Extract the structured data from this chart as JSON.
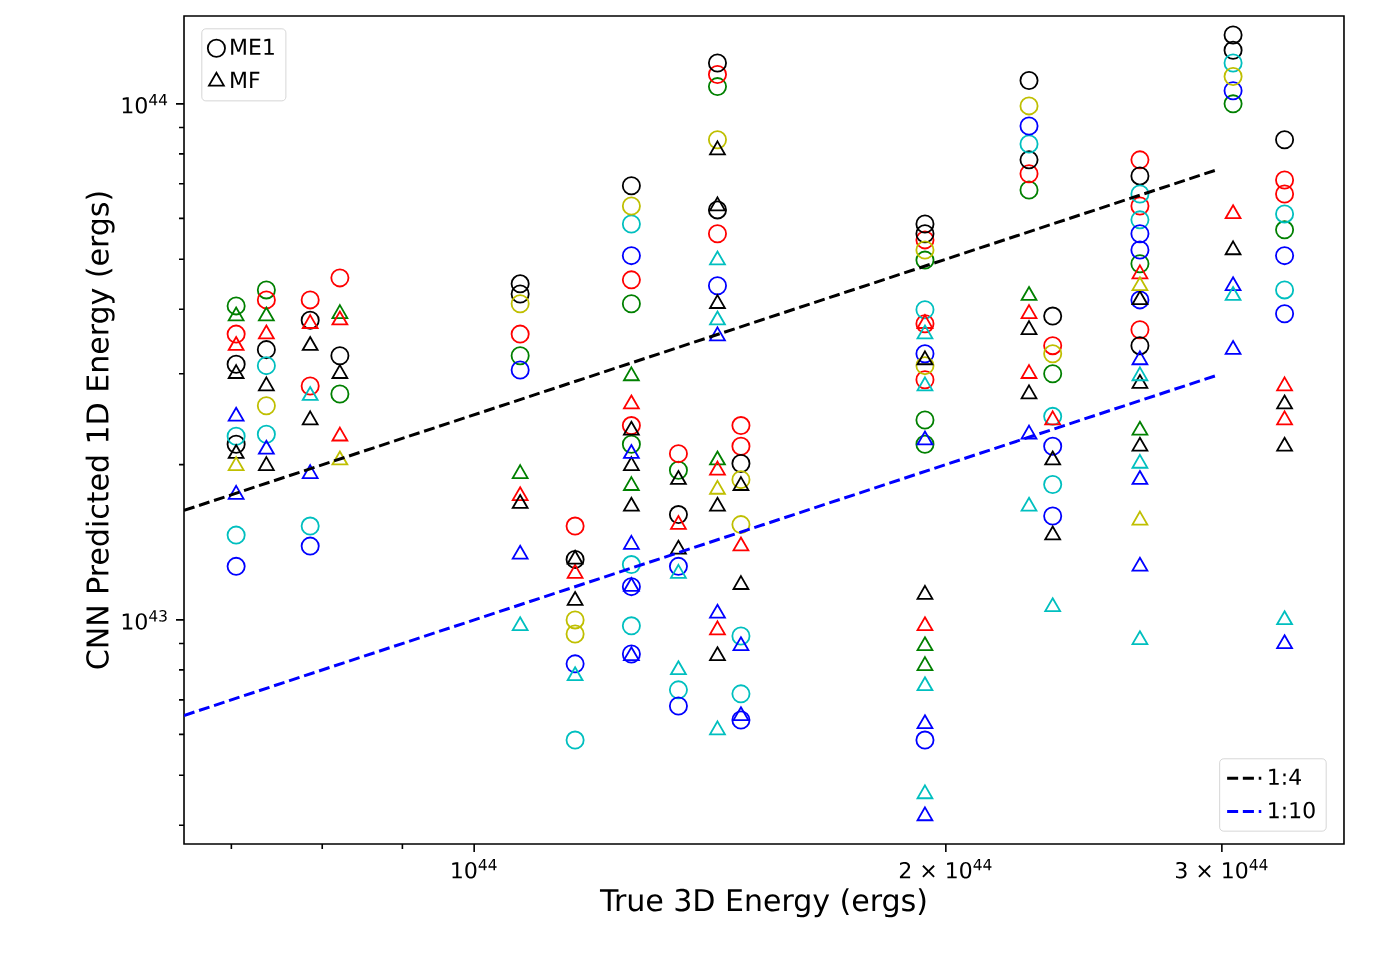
{
  "chart_data": {
    "type": "scatter",
    "xlabel": "True 3D Energy (ergs)",
    "legend": "top left",
    "ylabel": "CNN Predicted 1D Energy (ergs)",
    "log": "xy",
    "xlim": [
      6.53e+43,
      3.59e+44
    ],
    "ylim": [
      3.68e+42,
      1.48e+44
    ],
    "xticks": [
      {
        "value": 7e+43,
        "label": null
      },
      {
        "value": 8e+43,
        "label": null
      },
      {
        "value": 9e+43,
        "label": null
      },
      {
        "value": 1e+44,
        "label": "10$^{44}$"
      },
      {
        "value": 2e+44,
        "label": "2 × 10$^{44}$"
      },
      {
        "value": 3e+44,
        "label": "3 × 10$^{44}$"
      }
    ],
    "yticks": [
      {
        "value": 4e+42,
        "label": null
      },
      {
        "value": 5e+42,
        "label": null
      },
      {
        "value": 6e+42,
        "label": null
      },
      {
        "value": 7e+42,
        "label": null
      },
      {
        "value": 8e+42,
        "label": null
      },
      {
        "value": 9e+42,
        "label": null
      },
      {
        "value": 1e+43,
        "label": "10$^{43}$"
      },
      {
        "value": 2e+43,
        "label": null
      },
      {
        "value": 3e+43,
        "label": null
      },
      {
        "value": 4e+43,
        "label": null
      },
      {
        "value": 5e+43,
        "label": null
      },
      {
        "value": 6e+43,
        "label": null
      },
      {
        "value": 7e+43,
        "label": null
      },
      {
        "value": 8e+43,
        "label": null
      },
      {
        "value": 9e+43,
        "label": null
      },
      {
        "value": 1e+44,
        "label": "10$^{44}$"
      }
    ],
    "series": [
      {
        "name": "ME1",
        "marker": "circle",
        "color": "#000000",
        "x": [
          7.05e+43,
          7.05e+43,
          7.05e+43,
          7.05e+43,
          7.05e+43,
          7.05e+43,
          7.05e+43,
          7.37e+43,
          7.37e+43,
          7.37e+43,
          7.37e+43,
          7.37e+43,
          7.37e+43,
          7.86e+43,
          7.86e+43,
          7.86e+43,
          7.86e+43,
          7.86e+43,
          8.21e+43,
          8.21e+43,
          8.21e+43,
          1.07e+44,
          1.07e+44,
          1.07e+44,
          1.07e+44,
          1.07e+44,
          1.07e+44,
          1.16e+44,
          1.16e+44,
          1.16e+44,
          1.16e+44,
          1.16e+44,
          1.16e+44,
          1.26e+44,
          1.26e+44,
          1.26e+44,
          1.26e+44,
          1.26e+44,
          1.26e+44,
          1.26e+44,
          1.26e+44,
          1.26e+44,
          1.26e+44,
          1.26e+44,
          1.26e+44,
          1.35e+44,
          1.35e+44,
          1.35e+44,
          1.35e+44,
          1.35e+44,
          1.35e+44,
          1.43e+44,
          1.43e+44,
          1.43e+44,
          1.43e+44,
          1.43e+44,
          1.43e+44,
          1.43e+44,
          1.48e+44,
          1.48e+44,
          1.48e+44,
          1.48e+44,
          1.48e+44,
          1.48e+44,
          1.48e+44,
          1.48e+44,
          1.94e+44,
          1.94e+44,
          1.94e+44,
          1.94e+44,
          1.94e+44,
          1.94e+44,
          1.94e+44,
          1.94e+44,
          1.94e+44,
          1.94e+44,
          1.94e+44,
          1.94e+44,
          1.94e+44,
          2.26e+44,
          2.26e+44,
          2.26e+44,
          2.26e+44,
          2.26e+44,
          2.26e+44,
          2.26e+44,
          2.34e+44,
          2.34e+44,
          2.34e+44,
          2.34e+44,
          2.34e+44,
          2.34e+44,
          2.34e+44,
          2.34e+44,
          2.66e+44,
          2.66e+44,
          2.66e+44,
          2.66e+44,
          2.66e+44,
          2.66e+44,
          2.66e+44,
          2.66e+44,
          2.66e+44,
          2.66e+44,
          2.66e+44,
          3.05e+44,
          3.05e+44,
          3.05e+44,
          3.05e+44,
          3.05e+44,
          3.05e+44,
          3.29e+44,
          3.29e+44,
          3.29e+44,
          3.29e+44,
          3.29e+44,
          3.29e+44,
          3.29e+44,
          3.29e+44
        ],
        "values": [
          4.06e+43,
          3.58e+43,
          3.13e+43,
          2.27e+43,
          2.19e+43,
          1.46e+43,
          1.27e+43,
          4.36e+43,
          4.17e+43,
          3.34e+43,
          3.11e+43,
          2.6e+43,
          2.29e+43,
          4.17e+43,
          3.81e+43,
          2.84e+43,
          1.52e+43,
          1.39e+43,
          4.6e+43,
          3.25e+43,
          2.74e+43,
          4.48e+43,
          4.28e+43,
          4.1e+43,
          3.58e+43,
          3.25e+43,
          3.05e+43,
          1.52e+43,
          1.31e+43,
          1e+43,
          9.39e+42,
          8.22e+42,
          5.85e+42,
          6.94e+43,
          6.34e+43,
          5.85e+43,
          5.08e+43,
          4.56e+43,
          4.1e+43,
          2.38e+43,
          2.19e+43,
          1.28e+43,
          1.16e+43,
          9.74e+42,
          8.59e+42,
          2.1e+43,
          1.95e+43,
          1.6e+43,
          1.27e+43,
          7.32e+42,
          6.81e+42,
          1.2e+44,
          1.14e+44,
          1.08e+44,
          8.52e+43,
          6.23e+43,
          5.6e+43,
          4.44e+43,
          2.38e+43,
          2.17e+43,
          2.01e+43,
          1.87e+43,
          1.53e+43,
          9.31e+42,
          7.19e+42,
          6.4e+42,
          5.85e+43,
          5.6e+43,
          5.45e+43,
          5.21e+43,
          4.98e+43,
          3.99e+43,
          3.75e+43,
          3.28e+43,
          3.11e+43,
          2.92e+43,
          2.44e+43,
          2.19e+43,
          5.85e+42,
          1.11e+44,
          9.91e+43,
          9.06e+43,
          8.36e+43,
          7.79e+43,
          7.32e+43,
          6.81e+43,
          3.88e+43,
          3.4e+43,
          3.28e+43,
          3e+43,
          2.48e+43,
          2.17e+43,
          1.83e+43,
          1.59e+43,
          7.79e+43,
          7.25e+43,
          6.69e+43,
          6.34e+43,
          5.96e+43,
          5.6e+43,
          5.21e+43,
          4.9e+43,
          4.17e+43,
          3.65e+43,
          3.4e+43,
          1.36e+44,
          1.27e+44,
          1.2e+44,
          1.13e+44,
          1.06e+44,
          1e+44,
          8.52e+43,
          7.12e+43,
          6.69e+43,
          6.12e+43,
          5.7e+43,
          5.08e+43,
          4.36e+43,
          3.92e+43
        ],
        "colors": [
          "#008000",
          "#ff0000",
          "#000000",
          "#00bfbf",
          "#000000",
          "#00bfbf",
          "#0000ff",
          "#008000",
          "#ff0000",
          "#000000",
          "#00bfbf",
          "#bfbf00",
          "#00bfbf",
          "#ff0000",
          "#000000",
          "#ff0000",
          "#00bfbf",
          "#0000ff",
          "#ff0000",
          "#000000",
          "#008000",
          "#000000",
          "#000000",
          "#bfbf00",
          "#ff0000",
          "#008000",
          "#0000ff",
          "#ff0000",
          "#000000",
          "#bfbf00",
          "#bfbf00",
          "#0000ff",
          "#00bfbf",
          "#000000",
          "#bfbf00",
          "#00bfbf",
          "#0000ff",
          "#ff0000",
          "#008000",
          "#ff0000",
          "#008000",
          "#00bfbf",
          "#0000ff",
          "#00bfbf",
          "#0000ff",
          "#ff0000",
          "#008000",
          "#000000",
          "#0000ff",
          "#00bfbf",
          "#0000ff",
          "#000000",
          "#ff0000",
          "#008000",
          "#bfbf00",
          "#000000",
          "#ff0000",
          "#0000ff",
          "#ff0000",
          "#ff0000",
          "#000000",
          "#bfbf00",
          "#bfbf00",
          "#00bfbf",
          "#00bfbf",
          "#0000ff",
          "#000000",
          "#000000",
          "#ff0000",
          "#bfbf00",
          "#008000",
          "#00bfbf",
          "#ff0000",
          "#0000ff",
          "#bfbf00",
          "#ff0000",
          "#008000",
          "#008000",
          "#0000ff",
          "#000000",
          "#bfbf00",
          "#0000ff",
          "#00bfbf",
          "#000000",
          "#ff0000",
          "#008000",
          "#000000",
          "#ff0000",
          "#bfbf00",
          "#008000",
          "#00bfbf",
          "#0000ff",
          "#00bfbf",
          "#0000ff",
          "#ff0000",
          "#000000",
          "#00bfbf",
          "#ff0000",
          "#00bfbf",
          "#0000ff",
          "#0000ff",
          "#008000",
          "#0000ff",
          "#ff0000",
          "#000000",
          "#000000",
          "#000000",
          "#00bfbf",
          "#bfbf00",
          "#0000ff",
          "#008000",
          "#000000",
          "#ff0000",
          "#ff0000",
          "#00bfbf",
          "#008000",
          "#0000ff",
          "#00bfbf",
          "#0000ff"
        ]
      },
      {
        "name": "MF",
        "marker": "triangle",
        "color": "#000000",
        "x": [
          7.05e+43,
          7.05e+43,
          7.05e+43,
          7.05e+43,
          7.05e+43,
          7.05e+43,
          7.05e+43,
          7.37e+43,
          7.37e+43,
          7.37e+43,
          7.37e+43,
          7.37e+43,
          7.86e+43,
          7.86e+43,
          7.86e+43,
          7.86e+43,
          7.86e+43,
          8.21e+43,
          8.21e+43,
          8.21e+43,
          8.21e+43,
          8.21e+43,
          1.07e+44,
          1.07e+44,
          1.07e+44,
          1.07e+44,
          1.07e+44,
          1.16e+44,
          1.16e+44,
          1.16e+44,
          1.16e+44,
          1.26e+44,
          1.26e+44,
          1.26e+44,
          1.26e+44,
          1.26e+44,
          1.26e+44,
          1.26e+44,
          1.26e+44,
          1.26e+44,
          1.26e+44,
          1.35e+44,
          1.35e+44,
          1.35e+44,
          1.35e+44,
          1.35e+44,
          1.43e+44,
          1.43e+44,
          1.43e+44,
          1.43e+44,
          1.43e+44,
          1.43e+44,
          1.43e+44,
          1.43e+44,
          1.43e+44,
          1.43e+44,
          1.43e+44,
          1.43e+44,
          1.43e+44,
          1.43e+44,
          1.48e+44,
          1.48e+44,
          1.48e+44,
          1.48e+44,
          1.48e+44,
          1.94e+44,
          1.94e+44,
          1.94e+44,
          1.94e+44,
          1.94e+44,
          1.94e+44,
          1.94e+44,
          1.94e+44,
          1.94e+44,
          1.94e+44,
          1.94e+44,
          1.94e+44,
          1.94e+44,
          2.26e+44,
          2.26e+44,
          2.26e+44,
          2.26e+44,
          2.26e+44,
          2.26e+44,
          2.26e+44,
          2.34e+44,
          2.34e+44,
          2.34e+44,
          2.34e+44,
          2.66e+44,
          2.66e+44,
          2.66e+44,
          2.66e+44,
          2.66e+44,
          2.66e+44,
          2.66e+44,
          2.66e+44,
          2.66e+44,
          2.66e+44,
          2.66e+44,
          2.66e+44,
          2.66e+44,
          3.05e+44,
          3.05e+44,
          3.05e+44,
          3.05e+44,
          3.05e+44,
          3.29e+44,
          3.29e+44,
          3.29e+44,
          3.29e+44,
          3.29e+44,
          3.29e+44
        ],
        "values": [
          3.88e+43,
          3.4e+43,
          3e+43,
          2.48e+43,
          2.1e+43,
          1.99e+43,
          1.75e+43,
          3.88e+43,
          3.58e+43,
          2.84e+43,
          2.14e+43,
          1.99e+43,
          3.75e+43,
          3.4e+43,
          2.72e+43,
          2.44e+43,
          1.92e+43,
          3.92e+43,
          3.81e+43,
          3e+43,
          2.27e+43,
          2.04e+43,
          1.92e+43,
          1.74e+43,
          1.68e+43,
          1.34e+43,
          9.74e+42,
          1.31e+43,
          1.23e+43,
          1.09e+43,
          7.79e+42,
          2.97e+43,
          2.62e+43,
          2.33e+43,
          2.1e+43,
          1.99e+43,
          1.82e+43,
          1.66e+43,
          1.4e+43,
          1.16e+43,
          8.52e+42,
          1.87e+43,
          1.53e+43,
          1.37e+43,
          1.23e+43,
          8e+42,
          8.14e+43,
          6.34e+43,
          4.98e+43,
          4.1e+43,
          3.81e+43,
          3.55e+43,
          2.04e+43,
          1.95e+43,
          1.79e+43,
          1.66e+43,
          1.03e+43,
          9.56e+42,
          8.52e+42,
          6.12e+42,
          1.82e+43,
          1.39e+43,
          1.17e+43,
          8.91e+42,
          6.52e+42,
          3.75e+43,
          3.58e+43,
          3.19e+43,
          2.84e+43,
          2.23e+43,
          1.12e+43,
          9.74e+42,
          8.91e+42,
          8.15e+42,
          7.45e+42,
          6.29e+42,
          4.6e+42,
          4.17e+42,
          4.25e+43,
          3.92e+43,
          3.65e+43,
          3e+43,
          2.74e+43,
          2.29e+43,
          1.66e+43,
          2.44e+43,
          2.04e+43,
          1.46e+43,
          1.06e+43,
          4.68e+43,
          4.44e+43,
          4.17e+43,
          3.19e+43,
          2.97e+43,
          2.87e+43,
          2.33e+43,
          2.17e+43,
          2.01e+43,
          1.87e+43,
          1.56e+43,
          1.27e+43,
          9.15e+42,
          6.12e+43,
          5.21e+43,
          4.44e+43,
          4.25e+43,
          3.34e+43,
          2.84e+43,
          2.62e+43,
          2.44e+43,
          2.17e+43,
          1e+43,
          8.99e+42
        ],
        "colors": [
          "#008000",
          "#ff0000",
          "#000000",
          "#0000ff",
          "#000000",
          "#bfbf00",
          "#0000ff",
          "#008000",
          "#ff0000",
          "#000000",
          "#0000ff",
          "#000000",
          "#ff0000",
          "#000000",
          "#00bfbf",
          "#000000",
          "#0000ff",
          "#008000",
          "#ff0000",
          "#000000",
          "#ff0000",
          "#bfbf00",
          "#008000",
          "#ff0000",
          "#000000",
          "#0000ff",
          "#00bfbf",
          "#000000",
          "#ff0000",
          "#000000",
          "#00bfbf",
          "#008000",
          "#ff0000",
          "#000000",
          "#0000ff",
          "#000000",
          "#008000",
          "#000000",
          "#0000ff",
          "#0000ff",
          "#0000ff",
          "#000000",
          "#ff0000",
          "#000000",
          "#00bfbf",
          "#00bfbf",
          "#000000",
          "#000000",
          "#00bfbf",
          "#000000",
          "#00bfbf",
          "#0000ff",
          "#008000",
          "#ff0000",
          "#bfbf00",
          "#000000",
          "#0000ff",
          "#ff0000",
          "#000000",
          "#00bfbf",
          "#000000",
          "#ff0000",
          "#000000",
          "#0000ff",
          "#0000ff",
          "#ff0000",
          "#00bfbf",
          "#000000",
          "#00bfbf",
          "#0000ff",
          "#000000",
          "#ff0000",
          "#008000",
          "#008000",
          "#00bfbf",
          "#0000ff",
          "#00bfbf",
          "#0000ff",
          "#008000",
          "#ff0000",
          "#000000",
          "#ff0000",
          "#000000",
          "#0000ff",
          "#00bfbf",
          "#ff0000",
          "#000000",
          "#000000",
          "#00bfbf",
          "#ff0000",
          "#bfbf00",
          "#000000",
          "#0000ff",
          "#00bfbf",
          "#000000",
          "#008000",
          "#000000",
          "#00bfbf",
          "#0000ff",
          "#bfbf00",
          "#0000ff",
          "#00bfbf",
          "#ff0000",
          "#000000",
          "#0000ff",
          "#00bfbf",
          "#0000ff",
          "#ff0000",
          "#000000",
          "#ff0000",
          "#000000",
          "#00bfbf",
          "#0000ff"
        ]
      },
      {
        "name": "1:4",
        "type": "line",
        "line_style": "dashed",
        "color": "#000000",
        "x": [
          6.53e+43,
          2.97e+44
        ],
        "values": [
          1.63e+43,
          7.43e+43
        ]
      },
      {
        "name": "1:10",
        "type": "line",
        "line_style": "dashed",
        "color": "#0000ff",
        "x": [
          6.53e+43,
          2.97e+44
        ],
        "values": [
          6.53e+42,
          2.97e+43
        ]
      }
    ]
  }
}
